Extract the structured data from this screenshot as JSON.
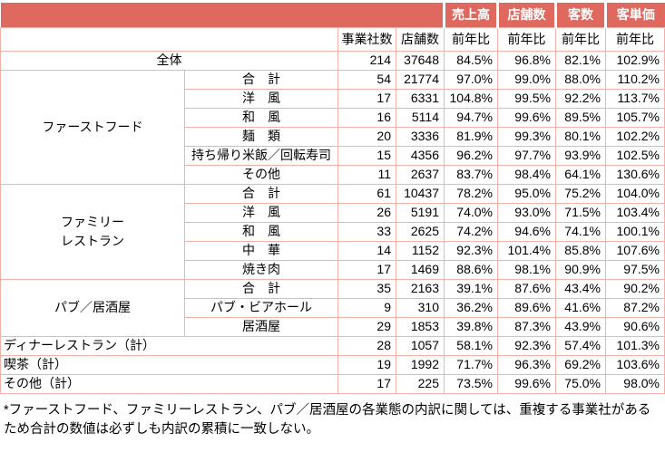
{
  "colors": {
    "header_bg": "#e0695f",
    "header_text": "#ffffff",
    "border": "#f2b2aa",
    "text": "#000000"
  },
  "table": {
    "top_header": {
      "sales": "売上高",
      "stores": "店舗数",
      "customers": "客数",
      "unit_price": "客単価"
    },
    "sub_header": {
      "companies": "事業社数",
      "stores": "店舗数",
      "yoy": "前年比"
    },
    "rows": [
      {
        "label": "全体",
        "span": "full",
        "align": "center",
        "values": [
          "214",
          "37648",
          "84.5%",
          "96.8%",
          "82.1%",
          "102.9%"
        ]
      },
      {
        "group": {
          "label": "ファーストフード",
          "rows": 6
        },
        "label": "合　計",
        "values": [
          "54",
          "21774",
          "97.0%",
          "99.0%",
          "88.0%",
          "110.2%"
        ]
      },
      {
        "label": "洋　風",
        "values": [
          "17",
          "6331",
          "104.8%",
          "99.5%",
          "92.2%",
          "113.7%"
        ]
      },
      {
        "label": "和　風",
        "values": [
          "16",
          "5114",
          "94.7%",
          "99.6%",
          "89.5%",
          "105.7%"
        ]
      },
      {
        "label": "麺　類",
        "values": [
          "20",
          "3336",
          "81.9%",
          "99.3%",
          "80.1%",
          "102.2%"
        ]
      },
      {
        "label": "持ち帰り米飯／回転寿司",
        "values": [
          "15",
          "4356",
          "96.2%",
          "97.7%",
          "93.9%",
          "102.5%"
        ]
      },
      {
        "label": "その他",
        "values": [
          "11",
          "2637",
          "83.7%",
          "98.4%",
          "64.1%",
          "130.6%"
        ]
      },
      {
        "group": {
          "label": "ファミリー\nレストラン",
          "rows": 5
        },
        "label": "合　計",
        "values": [
          "61",
          "10437",
          "78.2%",
          "95.0%",
          "75.2%",
          "104.0%"
        ]
      },
      {
        "label": "洋　風",
        "values": [
          "26",
          "5191",
          "74.0%",
          "93.0%",
          "71.5%",
          "103.4%"
        ]
      },
      {
        "label": "和　風",
        "values": [
          "33",
          "2625",
          "74.2%",
          "94.6%",
          "74.1%",
          "100.1%"
        ]
      },
      {
        "label": "中　華",
        "values": [
          "14",
          "1152",
          "92.3%",
          "101.4%",
          "85.8%",
          "107.6%"
        ]
      },
      {
        "label": "焼き肉",
        "values": [
          "17",
          "1469",
          "88.6%",
          "98.1%",
          "90.9%",
          "97.5%"
        ]
      },
      {
        "group": {
          "label": "パブ／居酒屋",
          "rows": 3
        },
        "label": "合　計",
        "values": [
          "35",
          "2163",
          "39.1%",
          "87.6%",
          "43.4%",
          "90.2%"
        ]
      },
      {
        "label": "パブ・ビアホール",
        "values": [
          "9",
          "310",
          "36.2%",
          "89.6%",
          "41.6%",
          "87.2%"
        ]
      },
      {
        "label": "居酒屋",
        "values": [
          "29",
          "1853",
          "39.8%",
          "87.3%",
          "43.9%",
          "90.6%"
        ]
      },
      {
        "label": "ディナーレストラン（計）",
        "span": "full",
        "align": "left",
        "values": [
          "28",
          "1057",
          "58.1%",
          "92.3%",
          "57.4%",
          "101.3%"
        ]
      },
      {
        "label": "喫茶（計）",
        "span": "full",
        "align": "left",
        "values": [
          "19",
          "1992",
          "71.7%",
          "96.3%",
          "69.2%",
          "103.6%"
        ]
      },
      {
        "label": "その他（計）",
        "span": "full",
        "align": "left",
        "values": [
          "17",
          "225",
          "73.5%",
          "99.6%",
          "75.0%",
          "98.0%"
        ]
      }
    ]
  },
  "footnote": "*ファーストフード、ファミリーレストラン、パブ／居酒屋の各業態の内訳に関しては、重複する事業社があるため合計の数値は必ずしも内訳の累積に一致しない。"
}
